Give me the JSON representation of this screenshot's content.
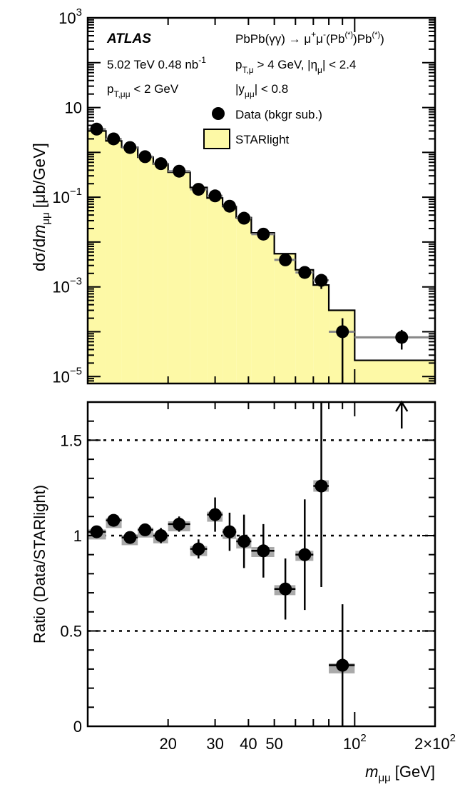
{
  "chart_data": [
    {
      "panel": "top",
      "type": "line",
      "scale": {
        "x": "log",
        "y": "log"
      },
      "xlim": [
        10,
        200
      ],
      "ylim": [
        7e-06,
        1000
      ],
      "ylabel": {
        "main": "dσ/d",
        "var": "m",
        "sub": "μμ",
        "unit": "[μb/GeV]"
      },
      "yticks": [
        {
          "value": 1000,
          "base": "10",
          "exp": "3"
        },
        {
          "value": 10,
          "base": "10",
          "exp": ""
        },
        {
          "value": 0.1,
          "base": "10",
          "exp": "−1"
        },
        {
          "value": 0.001,
          "base": "10",
          "exp": "−3"
        },
        {
          "value": 1e-05,
          "base": "10",
          "exp": "−5"
        }
      ],
      "annotations": {
        "experiment": "ATLAS",
        "energy": {
          "main": "5.02 TeV 0.48 nb",
          "sup": "-1"
        },
        "ptpair": {
          "p": "p",
          "sub": "T,μμ",
          "rest": " < 2 GeV"
        },
        "process": {
          "a": "PbPb(γγ) → μ",
          "sup1": "+",
          "b": "μ",
          "sup2": "-",
          "c": "(Pb",
          "sup3": "(*)",
          "d": ")Pb",
          "sup4": "(*)",
          "e": ")"
        },
        "ptcut": {
          "p": "p",
          "sub": "T,μ",
          "mid": " > 4 GeV, |η",
          "sub2": "μ",
          "rest": "| < 2.4"
        },
        "ycut": {
          "a": "|y",
          "sub": "μμ",
          "rest": "| < 0.8"
        }
      },
      "legend": [
        {
          "label": "Data (bkgr sub.)",
          "style": "marker"
        },
        {
          "label": "STARlight",
          "style": "fill",
          "color": "#fdf9a6"
        }
      ],
      "starlight_bins": [
        {
          "lo": 10.0,
          "hi": 11.7,
          "value": 3.0
        },
        {
          "lo": 11.7,
          "hi": 13.4,
          "value": 1.8
        },
        {
          "lo": 13.4,
          "hi": 15.4,
          "value": 1.3
        },
        {
          "lo": 15.4,
          "hi": 17.6,
          "value": 0.78
        },
        {
          "lo": 17.6,
          "hi": 20.0,
          "value": 0.55
        },
        {
          "lo": 20.0,
          "hi": 24.2,
          "value": 0.36
        },
        {
          "lo": 24.2,
          "hi": 28.0,
          "value": 0.165
        },
        {
          "lo": 28.0,
          "hi": 32.0,
          "value": 0.096
        },
        {
          "lo": 32.0,
          "hi": 36.0,
          "value": 0.062
        },
        {
          "lo": 36.0,
          "hi": 41.0,
          "value": 0.035
        },
        {
          "lo": 41.0,
          "hi": 50.0,
          "value": 0.016
        },
        {
          "lo": 50.0,
          "hi": 60.0,
          "value": 0.0055
        },
        {
          "lo": 60.0,
          "hi": 70.0,
          "value": 0.0024
        },
        {
          "lo": 70.0,
          "hi": 80.0,
          "value": 0.0011
        },
        {
          "lo": 80.0,
          "hi": 100.0,
          "value": 0.0003
        },
        {
          "lo": 100.0,
          "hi": 200.0,
          "value": 2.3e-05
        }
      ],
      "data_points": [
        {
          "x": 10.8,
          "y": 3.3,
          "xlo": 10.0,
          "xhi": 11.7,
          "ylo": 3.0,
          "yhi": 3.6
        },
        {
          "x": 12.5,
          "y": 2.0,
          "xlo": 11.7,
          "xhi": 13.4,
          "ylo": 1.8,
          "yhi": 2.2
        },
        {
          "x": 14.4,
          "y": 1.28,
          "xlo": 13.4,
          "xhi": 15.4,
          "ylo": 1.15,
          "yhi": 1.42
        },
        {
          "x": 16.4,
          "y": 0.8,
          "xlo": 15.4,
          "xhi": 17.6,
          "ylo": 0.72,
          "yhi": 0.88
        },
        {
          "x": 18.8,
          "y": 0.56,
          "xlo": 17.6,
          "xhi": 20.0,
          "ylo": 0.5,
          "yhi": 0.62
        },
        {
          "x": 22.0,
          "y": 0.38,
          "xlo": 20.0,
          "xhi": 24.2,
          "ylo": 0.34,
          "yhi": 0.42
        },
        {
          "x": 26.0,
          "y": 0.15,
          "xlo": 24.2,
          "xhi": 28.0,
          "ylo": 0.135,
          "yhi": 0.165
        },
        {
          "x": 30.0,
          "y": 0.107,
          "xlo": 28.0,
          "xhi": 32.0,
          "ylo": 0.096,
          "yhi": 0.118
        },
        {
          "x": 34.0,
          "y": 0.063,
          "xlo": 32.0,
          "xhi": 36.0,
          "ylo": 0.055,
          "yhi": 0.071
        },
        {
          "x": 38.5,
          "y": 0.034,
          "xlo": 36.0,
          "xhi": 41.0,
          "ylo": 0.029,
          "yhi": 0.039
        },
        {
          "x": 45.5,
          "y": 0.015,
          "xlo": 41.0,
          "xhi": 50.0,
          "ylo": 0.0125,
          "yhi": 0.0175
        },
        {
          "x": 55.0,
          "y": 0.004,
          "xlo": 50.0,
          "xhi": 60.0,
          "ylo": 0.0031,
          "yhi": 0.0049
        },
        {
          "x": 65.0,
          "y": 0.0021,
          "xlo": 60.0,
          "xhi": 70.0,
          "ylo": 0.0016,
          "yhi": 0.0026
        },
        {
          "x": 75.0,
          "y": 0.0014,
          "xlo": 70.0,
          "xhi": 80.0,
          "ylo": 0.0009,
          "yhi": 0.0019
        },
        {
          "x": 90.0,
          "y": 0.0001,
          "xlo": 80.0,
          "xhi": 100.0,
          "ylo": 7e-06,
          "yhi": 0.0002
        },
        {
          "x": 150.0,
          "y": 7.5e-05,
          "xlo": 100.0,
          "xhi": 200.0,
          "ylo": 4e-05,
          "yhi": 0.00011
        }
      ]
    },
    {
      "panel": "bottom",
      "type": "scatter",
      "scale": {
        "x": "log",
        "y": "linear"
      },
      "xlim": [
        10,
        200
      ],
      "ylim": [
        0,
        1.7
      ],
      "ylabel": "Ratio (Data/STARlight)",
      "yticks": [
        {
          "value": 0,
          "label": "0"
        },
        {
          "value": 0.5,
          "label": "0.5"
        },
        {
          "value": 1,
          "label": "1"
        },
        {
          "value": 1.5,
          "label": "1.5"
        }
      ],
      "reference_lines": [
        0.5,
        1.0,
        1.5
      ],
      "xticks": [
        {
          "value": 20,
          "base": "20",
          "exp": ""
        },
        {
          "value": 30,
          "base": "30",
          "exp": ""
        },
        {
          "value": 40,
          "base": "40",
          "exp": ""
        },
        {
          "value": 50,
          "base": "50",
          "exp": ""
        },
        {
          "value": 100,
          "base": "10",
          "exp": "2"
        },
        {
          "value": 200,
          "base": "2×10",
          "exp": "2"
        }
      ],
      "xlabel": {
        "var": "m",
        "sub": "μμ",
        "unit": "[GeV]"
      },
      "offscale_arrow_x": 150,
      "points": [
        {
          "x": 10.8,
          "y": 1.02,
          "xlo": 10.0,
          "xhi": 11.7,
          "err": 0.02,
          "sys": 0.012
        },
        {
          "x": 12.5,
          "y": 1.08,
          "xlo": 11.7,
          "xhi": 13.4,
          "err": 0.03,
          "sys": 0.012
        },
        {
          "x": 14.4,
          "y": 0.99,
          "xlo": 13.4,
          "xhi": 15.4,
          "err": 0.03,
          "sys": 0.012
        },
        {
          "x": 16.4,
          "y": 1.03,
          "xlo": 15.4,
          "xhi": 17.6,
          "err": 0.03,
          "sys": 0.012
        },
        {
          "x": 18.8,
          "y": 1.0,
          "xlo": 17.6,
          "xhi": 20.0,
          "err": 0.04,
          "sys": 0.012
        },
        {
          "x": 22.0,
          "y": 1.06,
          "xlo": 20.0,
          "xhi": 24.2,
          "err": 0.04,
          "sys": 0.015
        },
        {
          "x": 26.0,
          "y": 0.93,
          "xlo": 24.2,
          "xhi": 28.0,
          "err": 0.05,
          "sys": 0.015
        },
        {
          "x": 30.0,
          "y": 1.11,
          "xlo": 28.0,
          "xhi": 32.0,
          "err": 0.09,
          "sys": 0.015
        },
        {
          "x": 34.0,
          "y": 1.02,
          "xlo": 32.0,
          "xhi": 36.0,
          "err": 0.1,
          "sys": 0.015
        },
        {
          "x": 38.5,
          "y": 0.97,
          "xlo": 36.0,
          "xhi": 41.0,
          "err": 0.14,
          "sys": 0.015
        },
        {
          "x": 45.5,
          "y": 0.92,
          "xlo": 41.0,
          "xhi": 50.0,
          "err": 0.14,
          "sys": 0.02
        },
        {
          "x": 55.0,
          "y": 0.72,
          "xlo": 50.0,
          "xhi": 60.0,
          "err": 0.16,
          "sys": 0.02
        },
        {
          "x": 65.0,
          "y": 0.9,
          "xlo": 60.0,
          "xhi": 70.0,
          "err": 0.29,
          "sys": 0.02
        },
        {
          "x": 75.0,
          "y": 1.26,
          "xlo": 70.0,
          "xhi": 80.0,
          "err": 0.53,
          "sys": 0.03
        },
        {
          "x": 90.0,
          "y": 0.32,
          "xlo": 80.0,
          "xhi": 100.0,
          "err": 0.32,
          "sys": 0.01
        }
      ]
    }
  ]
}
